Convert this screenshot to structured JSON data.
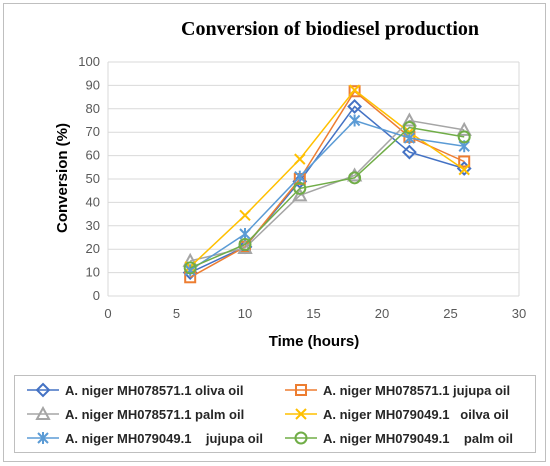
{
  "chart_data": {
    "type": "line",
    "title": "Conversion of biodiesel production",
    "xlabel": "Time (hours)",
    "ylabel": "Conversion (%)",
    "xlim": [
      0,
      30
    ],
    "ylim": [
      0,
      100
    ],
    "x_ticks": [
      "0",
      "5",
      "10",
      "15",
      "20",
      "25",
      "30"
    ],
    "y_ticks": [
      "0",
      "10",
      "20",
      "30",
      "40",
      "50",
      "60",
      "70",
      "80",
      "90",
      "100"
    ],
    "grid": "horizontal",
    "legend_position": "bottom",
    "series": [
      {
        "name": "A. niger MH078571.1 oliva oil",
        "color": "#4472c4",
        "marker": "diamond",
        "x": [
          6,
          10,
          14,
          18,
          22,
          26
        ],
        "y": [
          10,
          21,
          49,
          81,
          61.5,
          54.5
        ]
      },
      {
        "name": "A. niger MH078571.1 jujupa oil",
        "color": "#ed7d31",
        "marker": "square",
        "x": [
          6,
          10,
          14,
          18,
          22,
          26
        ],
        "y": [
          8,
          21,
          50,
          87.5,
          68,
          57.5
        ]
      },
      {
        "name": "A. niger MH078571.1 palm oil",
        "color": "#a5a5a5",
        "marker": "triangle",
        "x": [
          6,
          10,
          14,
          18,
          22,
          26
        ],
        "y": [
          15,
          20.5,
          43,
          51.5,
          75,
          71
        ]
      },
      {
        "name": "A. niger MH079049.1   oilva oil",
        "color": "#ffc000",
        "marker": "x",
        "x": [
          6,
          10,
          14,
          18,
          22,
          26
        ],
        "y": [
          12.5,
          34.5,
          58.5,
          88,
          70,
          54
        ]
      },
      {
        "name": "A. niger MH079049.1    jujupa oil",
        "color": "#5b9bd5",
        "marker": "star",
        "x": [
          6,
          10,
          14,
          18,
          22,
          26
        ],
        "y": [
          11,
          26.5,
          51,
          75,
          67.5,
          64
        ]
      },
      {
        "name": "A. niger MH079049.1    palm oil",
        "color": "#70ad47",
        "marker": "circle",
        "x": [
          6,
          10,
          14,
          18,
          22,
          26
        ],
        "y": [
          12,
          22,
          46,
          50.5,
          72,
          68
        ]
      }
    ]
  }
}
